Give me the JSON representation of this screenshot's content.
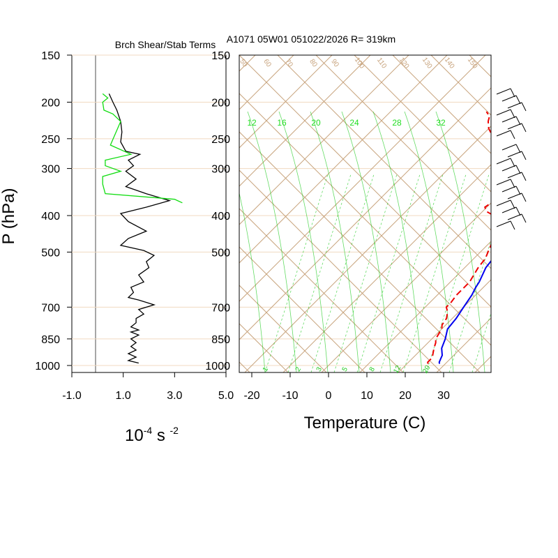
{
  "header": {
    "title": "A1071 05W01 051022/2026 R= 319km",
    "left_title": "Brch Shear/Stab Terms"
  },
  "left_panel": {
    "ylabel": "P (hPa)",
    "pressure_ticks": [
      "150",
      "200",
      "250",
      "300",
      "400",
      "500",
      "700",
      "850",
      "1000"
    ],
    "x_ticks": [
      "-1.0",
      "1.0",
      "3.0",
      "5.0"
    ],
    "units_base": "10",
    "units_exp1": "-4",
    "units_mid": " s ",
    "units_exp2": "-2"
  },
  "right_panel": {
    "pressure_ticks": [
      "150",
      "200",
      "250",
      "300",
      "400",
      "500",
      "700",
      "850",
      "1000"
    ],
    "temp_ticks": [
      "-20",
      "-10",
      "0",
      "10",
      "20",
      "30"
    ],
    "xlabel": "Temperature (C)",
    "saturation_mixing_labels": [
      "12",
      "16",
      "20",
      "24",
      "28",
      "32"
    ],
    "mixing_ratio_labels": [
      "1",
      "2",
      "3",
      "5",
      "8",
      "12",
      "20"
    ],
    "adiabat_labels": [
      "50",
      "60",
      "70",
      "80",
      "90",
      "100",
      "110",
      "120",
      "130",
      "140",
      "150"
    ]
  },
  "colors": {
    "skew_grid": "#c8a47e",
    "pressure_grid": "#f0d9c0",
    "mixing_lines": "#22cc22",
    "temperature": "#0000ee",
    "dewpoint": "#ee0000",
    "shear_term": "#000000",
    "stability_term": "#11dd11"
  },
  "chart_data": [
    {
      "type": "line",
      "title": "Brch Shear/Stab Terms",
      "ylabel": "P (hPa)",
      "xlabel": "10-4 s -2",
      "xlim": [
        -1.0,
        5.0
      ],
      "ylim": [
        1000,
        150
      ],
      "y_scale": "log",
      "series": [
        {
          "color": "#000000",
          "points": [
            [
              0.45,
              190
            ],
            [
              0.6,
              200
            ],
            [
              0.75,
              210
            ],
            [
              0.9,
              225
            ],
            [
              0.95,
              240
            ],
            [
              0.9,
              255
            ],
            [
              1.1,
              270
            ],
            [
              1.65,
              275
            ],
            [
              1.2,
              285
            ],
            [
              1.4,
              295
            ],
            [
              1.1,
              305
            ],
            [
              1.5,
              320
            ],
            [
              1.1,
              335
            ],
            [
              1.9,
              350
            ],
            [
              2.8,
              365
            ],
            [
              1.9,
              380
            ],
            [
              0.9,
              395
            ],
            [
              1.2,
              415
            ],
            [
              1.9,
              440
            ],
            [
              1.2,
              460
            ],
            [
              0.9,
              480
            ],
            [
              1.8,
              495
            ],
            [
              2.2,
              510
            ],
            [
              1.9,
              530
            ],
            [
              2.0,
              550
            ],
            [
              1.6,
              575
            ],
            [
              1.8,
              600
            ],
            [
              1.3,
              620
            ],
            [
              1.4,
              640
            ],
            [
              1.2,
              660
            ],
            [
              1.6,
              670
            ],
            [
              2.2,
              690
            ],
            [
              1.6,
              710
            ],
            [
              1.8,
              730
            ],
            [
              1.5,
              750
            ],
            [
              1.5,
              770
            ],
            [
              1.3,
              790
            ],
            [
              1.6,
              805
            ],
            [
              1.3,
              815
            ],
            [
              1.6,
              830
            ],
            [
              1.3,
              850
            ],
            [
              1.5,
              870
            ],
            [
              1.3,
              890
            ],
            [
              1.5,
              910
            ],
            [
              1.2,
              930
            ],
            [
              1.5,
              950
            ],
            [
              1.2,
              970
            ],
            [
              1.6,
              985
            ]
          ]
        },
        {
          "color": "#11dd11",
          "points": [
            [
              0.2,
              190
            ],
            [
              0.4,
              195
            ],
            [
              0.2,
              200
            ],
            [
              0.25,
              210
            ],
            [
              0.6,
              215
            ],
            [
              0.9,
              225
            ],
            [
              0.5,
              260
            ],
            [
              1.3,
              275
            ],
            [
              0.3,
              285
            ],
            [
              0.3,
              295
            ],
            [
              0.9,
              305
            ],
            [
              0.2,
              315
            ],
            [
              0.2,
              330
            ],
            [
              0.3,
              350
            ],
            [
              3.0,
              362
            ],
            [
              3.3,
              370
            ]
          ]
        }
      ]
    },
    {
      "type": "line",
      "title": "A1071 05W01 051022/2026 R= 319km",
      "xlabel": "Temperature (C)",
      "ylabel": "P (hPa)",
      "xlim": [
        -25,
        40
      ],
      "ylim": [
        1000,
        150
      ],
      "y_scale": "log",
      "skew": "skew-T",
      "series": [
        {
          "color": "#0000ee",
          "points": [
            [
              28.5,
              990
            ],
            [
              28,
              980
            ],
            [
              27.5,
              960
            ],
            [
              27,
              940
            ],
            [
              25,
              900
            ],
            [
              23.5,
              850
            ],
            [
              21.5,
              800
            ],
            [
              21,
              750
            ],
            [
              20,
              700
            ],
            [
              19,
              650
            ],
            [
              18,
              620
            ],
            [
              17.5,
              600
            ],
            [
              15.5,
              550
            ],
            [
              15,
              520
            ],
            [
              13.5,
              500
            ],
            [
              11.5,
              470
            ],
            [
              11,
              450
            ],
            [
              9.5,
              430
            ],
            [
              7.5,
              410
            ],
            [
              6.5,
              400
            ],
            [
              5,
              380
            ],
            [
              4,
              370
            ],
            [
              2.5,
              355
            ],
            [
              -1.5,
              320
            ],
            [
              -4,
              300
            ],
            [
              -6,
              285
            ],
            [
              -9,
              265
            ],
            [
              -11,
              250
            ],
            [
              -15,
              230
            ],
            [
              -19,
              210
            ],
            [
              -21,
              200
            ],
            [
              -26,
              180
            ]
          ]
        },
        {
          "color": "#ee0000",
          "points": [
            [
              25.5,
              990
            ],
            [
              25,
              980
            ],
            [
              25,
              960
            ],
            [
              24.5,
              940
            ],
            [
              23,
              900
            ],
            [
              22,
              870
            ],
            [
              21,
              850
            ],
            [
              20,
              800
            ],
            [
              19,
              780
            ],
            [
              18.5,
              750
            ],
            [
              17,
              720
            ],
            [
              15.5,
              700
            ],
            [
              15.5,
              680
            ],
            [
              15,
              650
            ],
            [
              15,
              600
            ],
            [
              13.5,
              550
            ],
            [
              13,
              520
            ],
            [
              12,
              500
            ],
            [
              10.5,
              470
            ],
            [
              9,
              440
            ],
            [
              8,
              420
            ],
            [
              6.5,
              410
            ],
            [
              4,
              400
            ],
            [
              1,
              390
            ],
            [
              -0.5,
              380
            ],
            [
              0.5,
              360
            ],
            [
              -1.5,
              340
            ],
            [
              -4,
              320
            ],
            [
              -7,
              305
            ],
            [
              -8.5,
              300
            ],
            [
              -9,
              290
            ],
            [
              -12,
              275
            ],
            [
              -14,
              260
            ],
            [
              -16,
              250
            ],
            [
              -20,
              235
            ],
            [
              -22,
              225
            ],
            [
              -23,
              218
            ],
            [
              -25,
              212
            ]
          ]
        }
      ]
    }
  ]
}
